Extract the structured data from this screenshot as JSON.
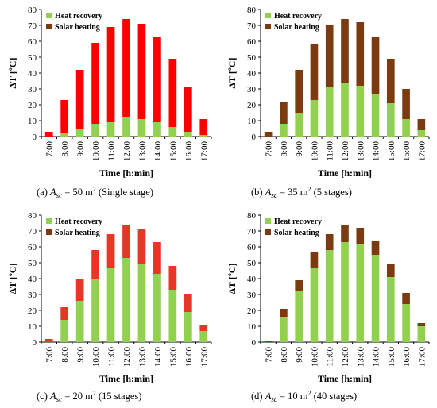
{
  "colors": {
    "heat_recovery": "#92d050",
    "solar_heating": "#7b3a10",
    "panel_a_solar": "#ff0000",
    "panel_c_solar": "#e53626",
    "axis": "#000000"
  },
  "chart_data": [
    {
      "type": "bar",
      "stacked": true,
      "categories": [
        "7:00",
        "8:00",
        "9:00",
        "10:00",
        "11:00",
        "12:00",
        "13:00",
        "14:00",
        "15:00",
        "16:00",
        "17:00"
      ],
      "series": [
        {
          "name": "Heat recovery",
          "values": [
            0,
            2,
            5,
            8,
            9,
            12,
            11,
            9,
            6,
            3,
            1
          ]
        },
        {
          "name": "Solar heating",
          "values": [
            3,
            21,
            37,
            51,
            60,
            62,
            60,
            54,
            43,
            28,
            10
          ]
        }
      ],
      "xlabel": "Time [h:min]",
      "ylabel": "ΔT [ºC]",
      "ylim": [
        0,
        80
      ],
      "yticks": [
        0,
        10,
        20,
        30,
        40,
        50,
        60,
        70,
        80
      ],
      "legend": "top-left",
      "caption_letter": "(a)",
      "caption_area_symbol": "A",
      "caption_area_sub": "sc",
      "caption_area_value": "= 50 m",
      "caption_area_exp": "2",
      "caption_stages": "(Single stage)"
    },
    {
      "type": "bar",
      "stacked": true,
      "categories": [
        "7:00",
        "8:00",
        "9:00",
        "10:00",
        "11:00",
        "12:00",
        "13:00",
        "14:00",
        "15:00",
        "16:00",
        "17:00"
      ],
      "series": [
        {
          "name": "Heat recovery",
          "values": [
            0,
            8,
            15,
            23,
            31,
            34,
            32,
            27,
            21,
            11,
            4
          ]
        },
        {
          "name": "Solar heating",
          "values": [
            3,
            14,
            27,
            35,
            39,
            40,
            40,
            36,
            28,
            19,
            7
          ]
        }
      ],
      "xlabel": "Time [h:min]",
      "ylabel": "ΔT [ºC]",
      "ylim": [
        0,
        80
      ],
      "yticks": [
        0,
        10,
        20,
        30,
        40,
        50,
        60,
        70,
        80
      ],
      "legend": "top-left",
      "caption_letter": "(b)",
      "caption_area_symbol": "A",
      "caption_area_sub": "sc",
      "caption_area_value": "= 35 m",
      "caption_area_exp": "2",
      "caption_stages": "(5 stages)"
    },
    {
      "type": "bar",
      "stacked": true,
      "categories": [
        "7:00",
        "8:00",
        "9:00",
        "10:00",
        "11:00",
        "12:00",
        "13:00",
        "14:00",
        "15:00",
        "16:00",
        "17:00"
      ],
      "series": [
        {
          "name": "Heat recovery",
          "values": [
            0,
            14,
            26,
            40,
            47,
            53,
            49,
            43,
            33,
            19,
            7
          ]
        },
        {
          "name": "Solar heating",
          "values": [
            2,
            8,
            14,
            18,
            21,
            21,
            22,
            20,
            15,
            11,
            4
          ]
        }
      ],
      "xlabel": "Time [h:min]",
      "ylabel": "ΔT [ºC]",
      "ylim": [
        0,
        80
      ],
      "yticks": [
        0,
        10,
        20,
        30,
        40,
        50,
        60,
        70,
        80
      ],
      "legend": "top-left",
      "caption_letter": "(c)",
      "caption_area_symbol": "A",
      "caption_area_sub": "sc",
      "caption_area_value": "= 20 m",
      "caption_area_exp": "2",
      "caption_stages": "(15 stages)"
    },
    {
      "type": "bar",
      "stacked": true,
      "categories": [
        "7:00",
        "8:00",
        "9:00",
        "10:00",
        "11:00",
        "12:00",
        "13:00",
        "14:00",
        "15:00",
        "16:00",
        "17:00"
      ],
      "series": [
        {
          "name": "Heat recovery",
          "values": [
            0,
            16,
            32,
            47,
            58,
            63,
            62,
            55,
            41,
            24,
            10
          ]
        },
        {
          "name": "Solar heating",
          "values": [
            1,
            5,
            7,
            10,
            10,
            11,
            10,
            9,
            8,
            7,
            2
          ]
        }
      ],
      "xlabel": "Time [h:min]",
      "ylabel": "ΔT [ºC]",
      "ylim": [
        0,
        80
      ],
      "yticks": [
        0,
        10,
        20,
        30,
        40,
        50,
        60,
        70,
        80
      ],
      "legend": "top-left",
      "caption_letter": "(d)",
      "caption_area_symbol": "A",
      "caption_area_sub": "sc",
      "caption_area_value": "= 10 m",
      "caption_area_exp": "2",
      "caption_stages": "(40 stages)"
    }
  ]
}
